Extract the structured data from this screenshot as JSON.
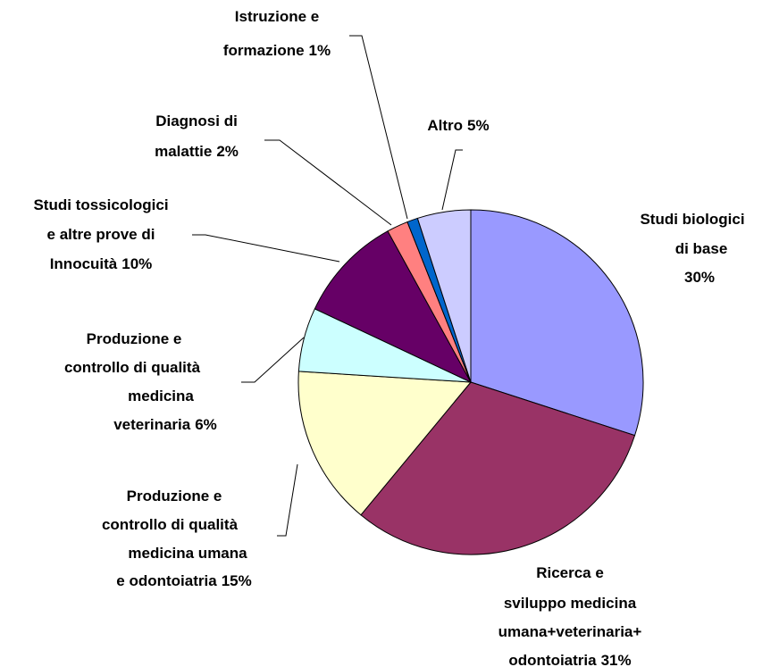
{
  "chart_data": {
    "type": "pie",
    "categories": [
      [
        "Studi biologici",
        "di base"
      ],
      [
        "Ricerca e",
        "sviluppo medicina",
        "umana+veterinaria+",
        "odontoiatria"
      ],
      [
        "Produzione e",
        "controllo di qualità",
        "medicina umana",
        "e odontoiatria"
      ],
      [
        "Produzione e",
        "controllo di qualità",
        "medicina",
        "veterinaria"
      ],
      [
        "Studi tossicologici",
        "e altre prove di",
        "Innocuità"
      ],
      [
        "Diagnosi di",
        "malattie"
      ],
      [
        "Istruzione e",
        "formazione"
      ],
      [
        "Altro"
      ]
    ],
    "values": [
      30,
      31,
      15,
      6,
      10,
      2,
      1,
      5
    ],
    "value_labels": [
      "30%",
      "31%",
      "15%",
      "6%",
      "10%",
      "2%",
      "1%",
      "5%"
    ],
    "colors": [
      "#9999ff",
      "#993366",
      "#ffffcc",
      "#ccffff",
      "#660066",
      "#ff8080",
      "#0066cc",
      "#ccccff"
    ]
  }
}
